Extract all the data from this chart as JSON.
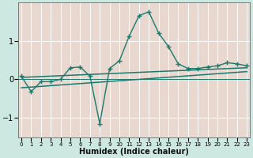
{
  "xlabel": "Humidex (Indice chaleur)",
  "outer_bg": "#cce8e0",
  "plot_bg": "#e8d8d0",
  "grid_color": "#ffffff",
  "line_color": "#1a7a6e",
  "ylim": [
    -1.5,
    2.0
  ],
  "xlim": [
    -0.3,
    23.3
  ],
  "yticks": [
    -1,
    0,
    1
  ],
  "xticks": [
    0,
    1,
    2,
    3,
    4,
    5,
    6,
    7,
    8,
    9,
    10,
    11,
    12,
    13,
    14,
    15,
    16,
    17,
    18,
    19,
    20,
    21,
    22,
    23
  ],
  "series1_x": [
    0,
    1,
    2,
    3,
    4,
    5,
    6,
    7,
    8,
    9,
    10,
    11,
    12,
    13,
    14,
    15,
    16,
    17,
    18,
    19,
    20,
    21,
    22,
    23
  ],
  "series1_y": [
    0.08,
    -0.32,
    -0.06,
    -0.06,
    0.0,
    0.3,
    0.32,
    0.08,
    -1.15,
    0.28,
    0.48,
    1.12,
    1.65,
    1.75,
    1.2,
    0.85,
    0.4,
    0.28,
    0.28,
    0.32,
    0.35,
    0.43,
    0.4,
    0.35
  ],
  "line2_x": [
    0,
    23
  ],
  "line2_y": [
    0.05,
    0.3
  ],
  "line3_x": [
    0,
    23
  ],
  "line3_y": [
    -0.22,
    0.2
  ]
}
